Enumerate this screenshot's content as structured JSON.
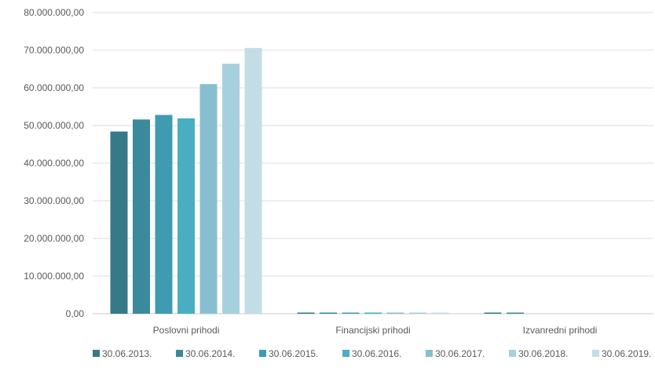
{
  "chart_data": {
    "type": "bar",
    "categories": [
      "Poslovni prihodi",
      "Financijski prihodi",
      "Izvanredni prihodi"
    ],
    "series": [
      {
        "name": "30.06.2013.",
        "color": "#367a87",
        "values": [
          48400000,
          130000,
          90000
        ]
      },
      {
        "name": "30.06.2014.",
        "color": "#3a8a9b",
        "values": [
          51600000,
          120000,
          80000
        ]
      },
      {
        "name": "30.06.2015.",
        "color": "#3f9bb0",
        "values": [
          52800000,
          110000,
          0
        ]
      },
      {
        "name": "30.06.2016.",
        "color": "#4aaec2",
        "values": [
          51900000,
          100000,
          0
        ]
      },
      {
        "name": "30.06.2017.",
        "color": "#88bfd0",
        "values": [
          61000000,
          90000,
          0
        ]
      },
      {
        "name": "30.06.2018.",
        "color": "#a6d0dd",
        "values": [
          66400000,
          80000,
          0
        ]
      },
      {
        "name": "30.06.2019.",
        "color": "#c3dde7",
        "values": [
          70600000,
          70000,
          0
        ]
      }
    ],
    "yticks": [
      "0,00",
      "10.000.000,00",
      "20.000.000,00",
      "30.000.000,00",
      "40.000.000,00",
      "50.000.000,00",
      "60.000.000,00",
      "70.000.000,00",
      "80.000.000,00"
    ],
    "ylim": [
      0,
      80000000
    ],
    "grid": true,
    "legend_position": "bottom",
    "title": "",
    "xlabel": "",
    "ylabel": ""
  }
}
